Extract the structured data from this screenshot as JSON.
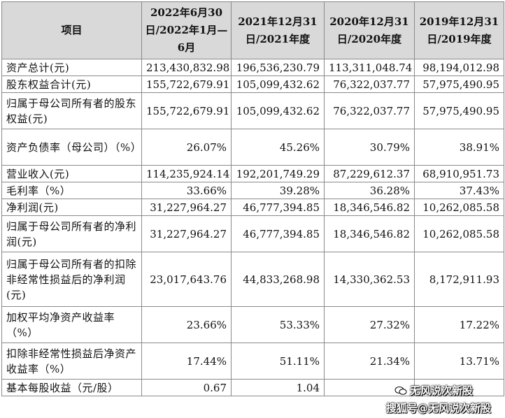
{
  "headers": [
    "项目",
    "2022年6月30日/2022年1月—6月",
    "2021年12月31日/2021年度",
    "2020年12月31日/2020年度",
    "2019年12月31日/2019年度"
  ],
  "rows": [
    {
      "label": "资产总计(元)",
      "values": [
        "213,430,832.98",
        "196,536,230.79",
        "113,311,048.74",
        "98,194,012.98"
      ]
    },
    {
      "label": "股东权益合计(元)",
      "values": [
        "155,722,679.91",
        "105,099,432.62",
        "76,322,037.77",
        "57,975,490.95"
      ]
    },
    {
      "label": "归属于母公司所有者的股东权益(元)",
      "values": [
        "155,722,679.91",
        "105,099,432.62",
        "76,322,037.77",
        "57,975,490.95"
      ]
    },
    {
      "label": "资产负债率（母公司）（%）",
      "values": [
        "26.07%",
        "45.26%",
        "30.79%",
        "38.91%"
      ]
    },
    {
      "label": "营业收入(元)",
      "values": [
        "114,235,924.14",
        "192,201,749.29",
        "87,229,612.37",
        "68,910,951.73"
      ]
    },
    {
      "label": "毛利率（%）",
      "values": [
        "33.66%",
        "39.28%",
        "36.28%",
        "37.43%"
      ]
    },
    {
      "label": "净利润(元)",
      "values": [
        "31,227,964.27",
        "46,777,394.85",
        "18,346,546.82",
        "10,262,085.58"
      ]
    },
    {
      "label": "归属于母公司所有者的净利润(元)",
      "values": [
        "31,227,964.27",
        "46,777,394.85",
        "18,346,546.82",
        "10,262,085.58"
      ]
    },
    {
      "label": "归属于母公司所有者的扣除非经常性损益后的净利润(元)",
      "values": [
        "23,017,643.76",
        "44,833,268.98",
        "14,330,362.53",
        "8,172,911.93"
      ]
    },
    {
      "label": "加权平均净资产收益率（%）",
      "values": [
        "23.66%",
        "53.33%",
        "27.32%",
        "17.22%"
      ]
    },
    {
      "label": "扣除非经常性损益后净资产收益率（%）",
      "values": [
        "17.44%",
        "51.11%",
        "21.34%",
        "13.71%"
      ]
    },
    {
      "label": "基本每股收益（元/股）",
      "values": [
        "0.67",
        "1.04",
        "",
        ""
      ]
    }
  ],
  "watermark": {
    "line1": "无风说次新股",
    "line2": "搜狐号@无风说次新股"
  }
}
